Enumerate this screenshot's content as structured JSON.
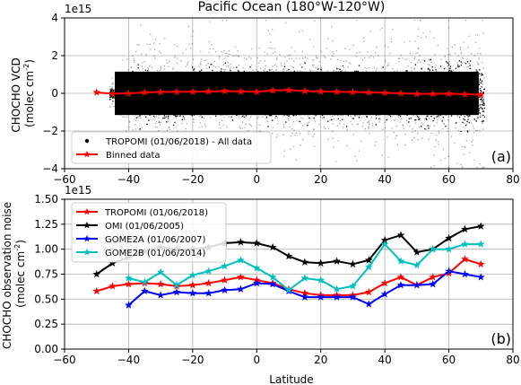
{
  "figure": {
    "title": "Pacific Ocean (180°W-120°W)"
  },
  "chart_data": [
    {
      "id": "a",
      "type": "scatter",
      "panel_label": "(a)",
      "ylabel_line1": "CHOCHO VCD",
      "ylabel_line2": "(molec cm",
      "ylabel_sup": "-2",
      "ylabel_end": ")",
      "offset_text": "1e15",
      "xlim": [
        -60,
        80
      ],
      "ylim": [
        -4,
        4
      ],
      "xticks": [
        -60,
        -40,
        -20,
        0,
        20,
        40,
        60,
        80
      ],
      "xtick_labels": [
        "−60",
        "−40",
        "−20",
        "0",
        "20",
        "40",
        "60",
        "80"
      ],
      "yticks": [
        -4,
        -2,
        0,
        2,
        4
      ],
      "ytick_labels": [
        "−4",
        "−2",
        "0",
        "2",
        "4"
      ],
      "grid": true,
      "legend_position": "lower-left",
      "scatter_series": {
        "name": "TROPOMI (01/06/2018) - All data",
        "color": "#000000",
        "x_range": [
          -46,
          71
        ],
        "spread_core": 1.0,
        "spread_outer": 2.4
      },
      "series": [
        {
          "name": "Binned data",
          "color": "#ff0000",
          "marker": "star",
          "x": [
            -50,
            -45,
            -40,
            -35,
            -30,
            -25,
            -20,
            -15,
            -10,
            -5,
            0,
            5,
            10,
            15,
            20,
            25,
            30,
            35,
            40,
            45,
            50,
            55,
            60,
            65,
            70
          ],
          "y": [
            0.05,
            -0.02,
            0.0,
            0.05,
            0.07,
            0.08,
            0.08,
            0.1,
            0.12,
            0.1,
            0.08,
            0.15,
            0.17,
            0.12,
            0.1,
            0.08,
            0.07,
            0.05,
            0.03,
            0.0,
            -0.03,
            -0.03,
            -0.02,
            -0.05,
            -0.07
          ]
        }
      ]
    },
    {
      "id": "b",
      "type": "line",
      "panel_label": "(b)",
      "ylabel_line1": "CHOCHO observation noise",
      "ylabel_line2": "(molec cm",
      "ylabel_sup": "-2",
      "ylabel_end": ")",
      "offset_text": "1e15",
      "xlabel": "Latitude",
      "xlim": [
        -60,
        80
      ],
      "ylim": [
        0,
        1.5
      ],
      "xticks": [
        -60,
        -40,
        -20,
        0,
        20,
        40,
        60,
        80
      ],
      "xtick_labels": [
        "−60",
        "−40",
        "−20",
        "0",
        "20",
        "40",
        "60",
        "80"
      ],
      "yticks": [
        0,
        0.25,
        0.5,
        0.75,
        1.0,
        1.25,
        1.5
      ],
      "ytick_labels": [
        "0.00",
        "0.25",
        "0.50",
        "0.75",
        "1.00",
        "1.25",
        "1.50"
      ],
      "grid": true,
      "legend_position": "upper-left",
      "series": [
        {
          "name": "TROPOMI (01/06/2018)",
          "color": "#ff0000",
          "marker": "star",
          "x": [
            -50,
            -45,
            -40,
            -35,
            -30,
            -25,
            -20,
            -15,
            -10,
            -5,
            0,
            5,
            10,
            15,
            20,
            25,
            30,
            35,
            40,
            45,
            50,
            55,
            60,
            65,
            70
          ],
          "y": [
            0.58,
            0.63,
            0.65,
            0.66,
            0.65,
            0.63,
            0.64,
            0.66,
            0.69,
            0.72,
            0.69,
            0.66,
            0.6,
            0.56,
            0.54,
            0.54,
            0.54,
            0.57,
            0.66,
            0.72,
            0.64,
            0.72,
            0.76,
            0.9,
            0.85
          ]
        },
        {
          "name": "OMI (01/06/2005)",
          "color": "#000000",
          "marker": "star",
          "x": [
            -50,
            -45,
            -40,
            -35,
            -30,
            -25,
            -20,
            -15,
            -10,
            -5,
            0,
            5,
            10,
            15,
            20,
            25,
            30,
            35,
            40,
            45,
            50,
            55,
            60,
            65,
            70
          ],
          "y": [
            0.75,
            0.86,
            0.92,
            0.98,
            1.02,
            1.0,
            1.0,
            1.02,
            1.06,
            1.07,
            1.06,
            1.02,
            0.93,
            0.87,
            0.86,
            0.88,
            0.85,
            0.89,
            1.09,
            1.14,
            0.97,
            1.0,
            1.11,
            1.2,
            1.23
          ]
        },
        {
          "name": "GOME2A (01/06/2007)",
          "color": "#0000ff",
          "marker": "star",
          "x": [
            -40,
            -35,
            -30,
            -25,
            -20,
            -15,
            -10,
            -5,
            0,
            5,
            10,
            15,
            20,
            25,
            30,
            35,
            40,
            45,
            50,
            55,
            60,
            65,
            70
          ],
          "y": [
            0.44,
            0.58,
            0.54,
            0.57,
            0.56,
            0.56,
            0.59,
            0.6,
            0.66,
            0.65,
            0.58,
            0.52,
            0.52,
            0.52,
            0.52,
            0.45,
            0.55,
            0.64,
            0.64,
            0.65,
            0.78,
            0.75,
            0.72
          ]
        },
        {
          "name": "GOME2B (01/06/2014)",
          "color": "#00bfbf",
          "marker": "star",
          "x": [
            -40,
            -35,
            -30,
            -25,
            -20,
            -15,
            -10,
            -5,
            0,
            5,
            10,
            15,
            20,
            25,
            30,
            35,
            40,
            45,
            50,
            55,
            60,
            65,
            70
          ],
          "y": [
            0.71,
            0.67,
            0.77,
            0.64,
            0.74,
            0.78,
            0.83,
            0.89,
            0.81,
            0.72,
            0.59,
            0.71,
            0.69,
            0.6,
            0.63,
            0.82,
            1.05,
            0.88,
            0.84,
            1.0,
            1.0,
            1.05,
            1.05
          ]
        }
      ]
    }
  ]
}
